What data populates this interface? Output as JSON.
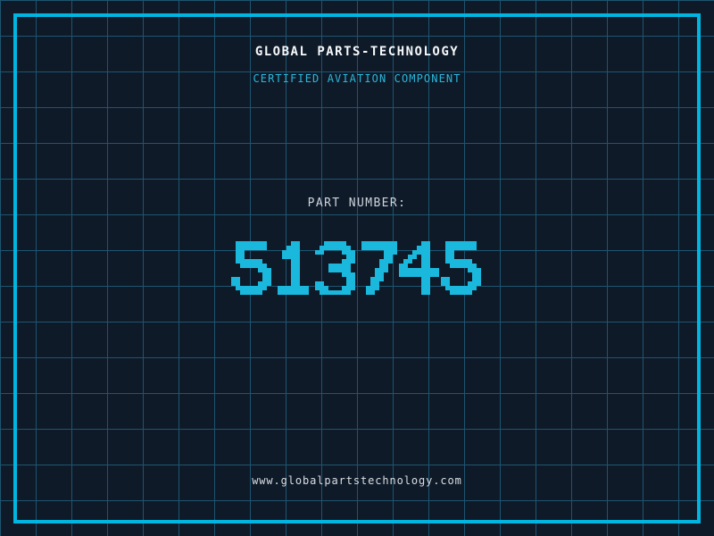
{
  "page": {
    "title": "GLOBAL PARTS-TECHNOLOGY",
    "subtitle": "CERTIFIED AVIATION COMPONENT",
    "part_label": "PART NUMBER:",
    "part_number": "513745",
    "footer_url": "www.globalpartstechnology.com"
  },
  "colors": {
    "background": "#0f1a29",
    "grid_line": "#1d5570",
    "frame_border": "#00b5e0",
    "title_text": "#f7f9fa",
    "subtitle_text": "#2ab7da",
    "label_text": "#ccd4dc",
    "digit_color": "#1ab8dc",
    "footer_text": "#d9dee3"
  }
}
